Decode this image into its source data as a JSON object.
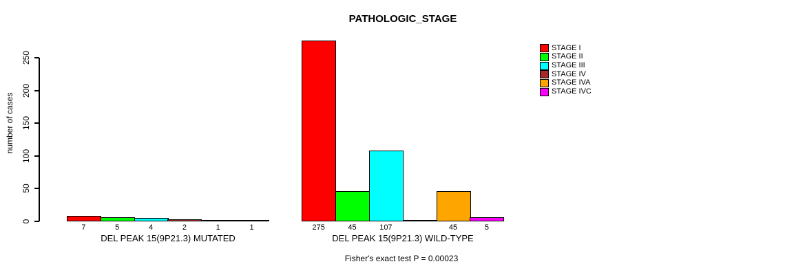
{
  "title": "PATHOLOGIC_STAGE",
  "chart_data": {
    "type": "bar",
    "title": "PATHOLOGIC_STAGE",
    "xlabel": "",
    "ylabel": "number of cases",
    "ylim": [
      0,
      250
    ],
    "yticks": [
      0,
      50,
      100,
      150,
      200,
      250
    ],
    "grid": false,
    "legend_position": "right",
    "categories": [
      "STAGE I",
      "STAGE II",
      "STAGE III",
      "STAGE IV",
      "STAGE IVA",
      "STAGE IVC"
    ],
    "colors": [
      "#FF0000",
      "#00FF00",
      "#00FFFF",
      "#A52A2A",
      "#FFA500",
      "#FF00FF"
    ],
    "groups": [
      {
        "label": "DEL PEAK 15(9P21.3) MUTATED",
        "values": [
          7,
          5,
          4,
          2,
          1,
          1
        ]
      },
      {
        "label": "DEL PEAK 15(9P21.3) WILD-TYPE",
        "values": [
          275,
          45,
          107,
          0,
          45,
          5
        ]
      }
    ],
    "bar_value_labels_shown": true,
    "annotation": "Fisher's exact test P = 0.00023"
  }
}
